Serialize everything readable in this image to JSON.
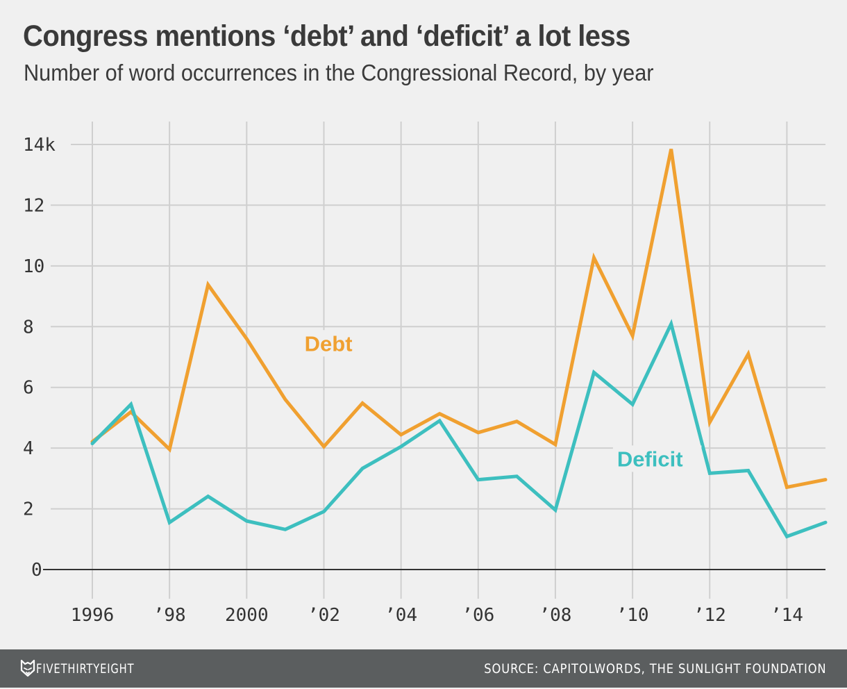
{
  "header": {
    "title": "Congress mentions ‘debt’ and ‘deficit’ a lot less",
    "subtitle": "Number of word occurrences in the Congressional Record, by year"
  },
  "footer": {
    "brand": "FIVETHIRTYEIGHT",
    "logo_icon": "fox-icon",
    "source": "SOURCE: CAPITOLWORDS, THE SUNLIGHT FOUNDATION"
  },
  "chart_data": {
    "type": "line",
    "title": "Congress mentions ‘debt’ and ‘deficit’ a lot less",
    "subtitle": "Number of word occurrences in the Congressional Record, by year",
    "xlabel": "",
    "ylabel": "",
    "x": [
      1996,
      1997,
      1998,
      1999,
      2000,
      2001,
      2002,
      2003,
      2004,
      2005,
      2006,
      2007,
      2008,
      2009,
      2010,
      2011,
      2012,
      2013,
      2014,
      2015
    ],
    "xlim": [
      1996,
      2015
    ],
    "ylim": [
      0,
      14000
    ],
    "x_ticks": [
      1996,
      1998,
      2000,
      2002,
      2004,
      2006,
      2008,
      2010,
      2012,
      2014
    ],
    "x_tick_labels": [
      "1996",
      "’98",
      "2000",
      "’02",
      "’04",
      "’06",
      "’08",
      "’10",
      "’12",
      "’14"
    ],
    "y_ticks": [
      0,
      2000,
      4000,
      6000,
      8000,
      10000,
      12000,
      14000
    ],
    "y_tick_labels": [
      "0",
      "2",
      "4",
      "6",
      "8",
      "10",
      "12",
      "14k"
    ],
    "grid": true,
    "legend": "inline labels",
    "series": [
      {
        "name": "Debt",
        "color": "#f0a030",
        "values": [
          4210,
          5190,
          3960,
          9380,
          7600,
          5600,
          4050,
          5480,
          4440,
          5130,
          4510,
          4880,
          4120,
          10270,
          7700,
          13850,
          4850,
          7100,
          2710,
          2960
        ]
      },
      {
        "name": "Deficit",
        "color": "#3dbfbf",
        "values": [
          4150,
          5440,
          1550,
          2410,
          1600,
          1320,
          1910,
          3330,
          4050,
          4900,
          2960,
          3070,
          1960,
          6490,
          5440,
          8090,
          3170,
          3260,
          1090,
          1550
        ]
      }
    ],
    "annotations": [
      {
        "text": "Debt",
        "series": "Debt",
        "x": 2001.5,
        "y": 7200
      },
      {
        "text": "Deficit",
        "series": "Deficit",
        "x": 2009.6,
        "y": 3400
      }
    ]
  }
}
